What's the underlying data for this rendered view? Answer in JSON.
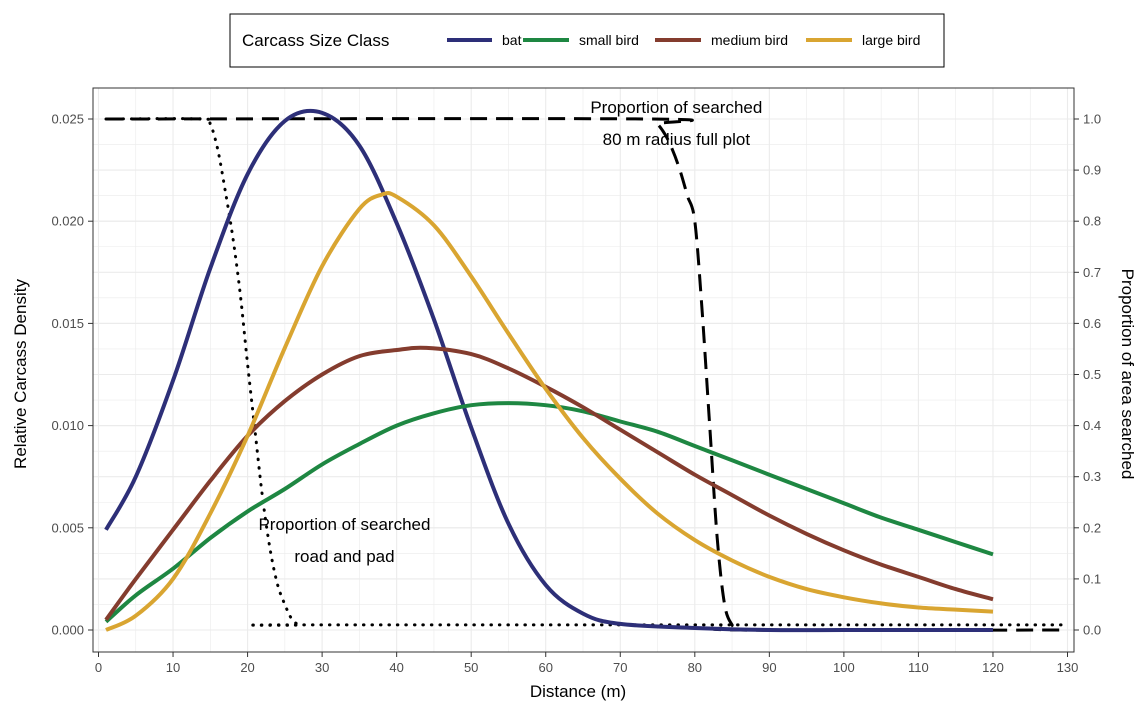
{
  "chart_data": {
    "type": "line",
    "xlabel": "Distance (m)",
    "ylabel": "Relative Carcass Density",
    "y2label": "Proportion of area searched",
    "xlim": [
      0,
      130
    ],
    "ylim": [
      0,
      0.025
    ],
    "y2lim": [
      0,
      1.0
    ],
    "x_ticks": [
      0,
      10,
      20,
      30,
      40,
      50,
      60,
      70,
      80,
      90,
      100,
      110,
      120,
      130
    ],
    "y_ticks": [
      "0.000",
      "0.005",
      "0.010",
      "0.015",
      "0.020",
      "0.025"
    ],
    "y2_ticks": [
      "0.0",
      "0.1",
      "0.2",
      "0.3",
      "0.4",
      "0.5",
      "0.6",
      "0.7",
      "0.8",
      "0.9",
      "1.0"
    ],
    "grid": true,
    "legend": {
      "title": "Carcass Size Class",
      "placement": "top",
      "entries": [
        "bat",
        "small bird",
        "medium bird",
        "large bird"
      ]
    },
    "series": [
      {
        "name": "bat",
        "axis": "left",
        "color": "#2d2f78",
        "x": [
          1,
          5,
          10,
          15,
          20,
          25,
          30,
          35,
          40,
          45,
          50,
          55,
          60,
          65,
          70,
          80,
          90,
          100,
          110,
          120
        ],
        "y": [
          0.0049,
          0.0075,
          0.0122,
          0.0177,
          0.0223,
          0.0249,
          0.0253,
          0.0237,
          0.0199,
          0.0152,
          0.0099,
          0.0052,
          0.0022,
          0.0008,
          0.0003,
          0.0001,
          0.0,
          0.0,
          0.0,
          0.0
        ]
      },
      {
        "name": "small bird",
        "axis": "left",
        "color": "#1e8742",
        "x": [
          1,
          5,
          10,
          15,
          20,
          25,
          30,
          35,
          40,
          45,
          50,
          55,
          60,
          65,
          70,
          75,
          80,
          85,
          90,
          95,
          100,
          105,
          110,
          115,
          120
        ],
        "y": [
          0.0004,
          0.0017,
          0.003,
          0.0045,
          0.0058,
          0.0069,
          0.0081,
          0.0091,
          0.01,
          0.0106,
          0.011,
          0.0111,
          0.011,
          0.0107,
          0.0102,
          0.0097,
          0.009,
          0.0083,
          0.0076,
          0.0069,
          0.0062,
          0.0055,
          0.0049,
          0.0043,
          0.0037
        ]
      },
      {
        "name": "medium bird",
        "axis": "left",
        "color": "#843c2e",
        "x": [
          1,
          5,
          10,
          15,
          20,
          25,
          30,
          35,
          40,
          44,
          50,
          55,
          60,
          65,
          70,
          75,
          80,
          85,
          90,
          95,
          100,
          105,
          110,
          115,
          120
        ],
        "y": [
          0.0005,
          0.0025,
          0.0049,
          0.0073,
          0.0095,
          0.0112,
          0.0125,
          0.0134,
          0.0137,
          0.0138,
          0.0135,
          0.0128,
          0.0119,
          0.0109,
          0.0098,
          0.0087,
          0.0076,
          0.0066,
          0.0056,
          0.0047,
          0.0039,
          0.0032,
          0.0026,
          0.002,
          0.0015
        ]
      },
      {
        "name": "large bird",
        "axis": "left",
        "color": "#d9a531",
        "x": [
          1,
          5,
          10,
          15,
          20,
          25,
          30,
          35,
          38,
          40,
          45,
          50,
          55,
          60,
          65,
          70,
          75,
          80,
          85,
          90,
          95,
          100,
          105,
          110,
          115,
          120
        ],
        "y": [
          0.0,
          0.0007,
          0.0025,
          0.0057,
          0.0095,
          0.0138,
          0.0178,
          0.0206,
          0.0213,
          0.0212,
          0.0198,
          0.0173,
          0.0145,
          0.0118,
          0.0094,
          0.0074,
          0.0057,
          0.0044,
          0.0034,
          0.0026,
          0.002,
          0.0016,
          0.0013,
          0.0011,
          0.001,
          0.0009
        ]
      },
      {
        "name": "Proportion of searched road and pad",
        "axis": "right",
        "style": "dotted",
        "color": "#000000",
        "x": [
          1,
          14,
          15,
          16,
          17,
          18,
          19,
          20,
          21,
          22,
          23,
          24,
          25,
          26,
          27,
          28,
          130
        ],
        "y": [
          1.0,
          1.0,
          0.99,
          0.94,
          0.86,
          0.77,
          0.66,
          0.52,
          0.39,
          0.26,
          0.16,
          0.09,
          0.05,
          0.02,
          0.01,
          0.01,
          0.01
        ]
      },
      {
        "name": "Proportion of searched 80 m radius full plot",
        "axis": "right",
        "style": "dashed",
        "color": "#000000",
        "x": [
          1,
          74,
          75,
          76,
          77,
          78,
          79,
          80,
          81,
          82,
          83,
          84,
          85,
          86,
          130
        ],
        "y": [
          1.0,
          1.0,
          0.99,
          0.97,
          0.94,
          0.9,
          0.85,
          0.8,
          0.62,
          0.4,
          0.18,
          0.05,
          0.01,
          0.0,
          0.0
        ]
      }
    ],
    "annotations": [
      {
        "lines": [
          "Proportion of searched",
          "80 m radius full plot"
        ],
        "x": 79,
        "y2": 0.99
      },
      {
        "lines": [
          "Proportion of searched",
          "road and pad"
        ],
        "x": 33,
        "y2": 0.18
      }
    ]
  }
}
